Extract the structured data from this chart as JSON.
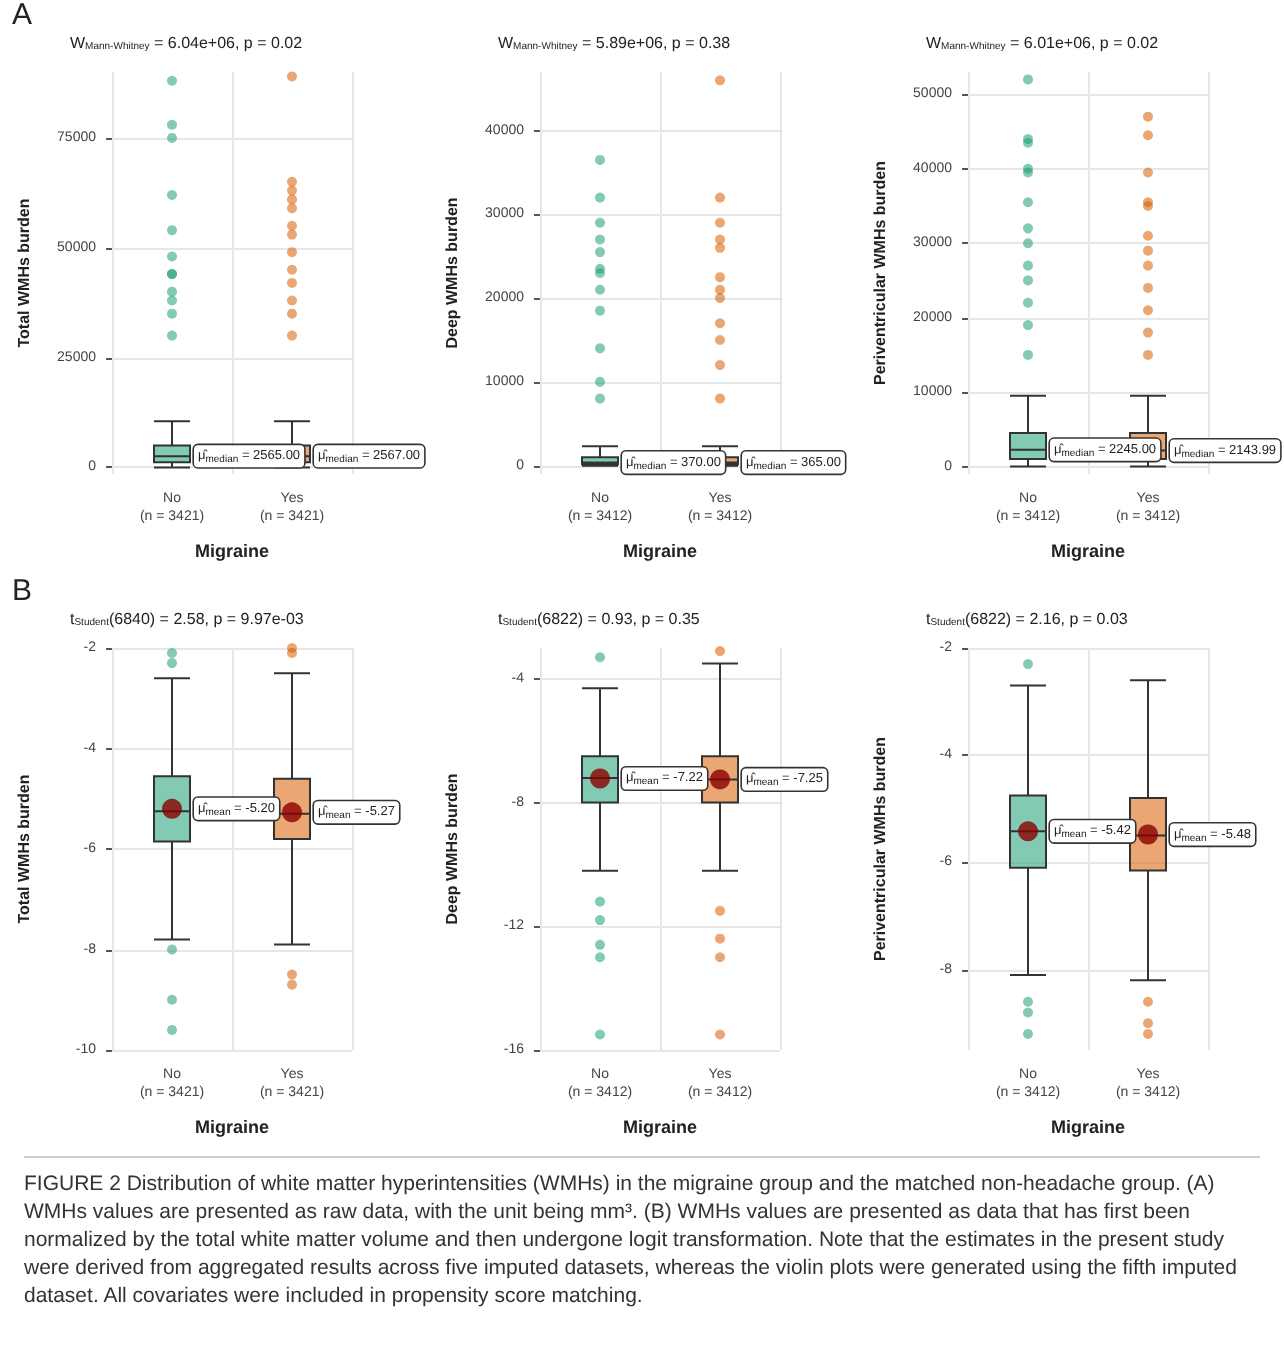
{
  "chart_data": [
    {
      "type": "box",
      "title": "W$_{Mann-Whitney}$ = 6.04e+06, p = 0.02",
      "xlabel": "Migraine",
      "ylabel": "Total WMHs burden",
      "categories": [
        "No\n(n = 3421)",
        "Yes\n(n = 3421)"
      ],
      "colors": [
        "#1b9e77",
        "#d95f02"
      ],
      "ylim": [
        -1500,
        90000
      ],
      "yticks": [
        0,
        25000,
        50000,
        75000
      ],
      "grid": true,
      "boxes": [
        {
          "low": 0,
          "q1": 1200,
          "median": 2565,
          "q3": 5000,
          "high": 10500,
          "outliers": [
            88000,
            78000,
            75000,
            62000,
            54000,
            48000,
            44000,
            44000,
            40000,
            38000,
            35000,
            30000
          ]
        },
        {
          "low": 0,
          "q1": 1200,
          "median": 2567,
          "q3": 5000,
          "high": 10500,
          "outliers": [
            89000,
            65000,
            63000,
            61000,
            59000,
            55000,
            53000,
            49000,
            45000,
            42000,
            38000,
            35000,
            30000
          ]
        }
      ],
      "annotations": [
        "A",
        {
          "text": "μ̂$_{median}$ = 2565.00",
          "x": "No\n(n = 3421)",
          "y": 2565
        },
        {
          "text": "μ̂$_{median}$ = 2567.00",
          "x": "Yes\n(n = 3421)",
          "y": 2567
        }
      ]
    },
    {
      "type": "box",
      "title": "W$_{Mann-Whitney}$ = 5.89e+06, p = 0.38",
      "xlabel": "Migraine",
      "ylabel": "Deep WMHs burden",
      "categories": [
        "No\n(n = 3412)",
        "Yes\n(n = 3412)"
      ],
      "colors": [
        "#1b9e77",
        "#d95f02"
      ],
      "ylim": [
        -1000,
        47000
      ],
      "yticks": [
        0,
        10000,
        20000,
        30000,
        40000
      ],
      "grid": true,
      "boxes": [
        {
          "low": 0,
          "q1": 150,
          "median": 370,
          "q3": 1000,
          "high": 2300,
          "outliers": [
            36500,
            32000,
            29000,
            27000,
            25500,
            23500,
            23000,
            21000,
            18500,
            14000,
            10000,
            8000
          ]
        },
        {
          "low": 0,
          "q1": 150,
          "median": 365,
          "q3": 1000,
          "high": 2300,
          "outliers": [
            46000,
            32000,
            29000,
            27000,
            26000,
            22500,
            21000,
            20000,
            17000,
            15000,
            12000,
            8000
          ]
        }
      ],
      "annotations": [
        {
          "text": "μ̂$_{median}$ = 370.00",
          "x": "No\n(n = 3412)",
          "y": 370
        },
        {
          "text": "μ̂$_{median}$ = 365.00",
          "x": "Yes\n(n = 3412)",
          "y": 365
        }
      ]
    },
    {
      "type": "box",
      "title": "W$_{Mann-Whitney}$ = 6.01e+06, p = 0.02",
      "xlabel": "Migraine",
      "ylabel": "Periventricular WMHs burden",
      "categories": [
        "No\n(n = 3412)",
        "Yes\n(n = 3412)"
      ],
      "colors": [
        "#1b9e77",
        "#d95f02"
      ],
      "ylim": [
        -1000,
        53000
      ],
      "yticks": [
        0,
        10000,
        20000,
        30000,
        40000,
        50000
      ],
      "grid": true,
      "boxes": [
        {
          "low": 0,
          "q1": 1000,
          "median": 2245,
          "q3": 4500,
          "high": 9500,
          "outliers": [
            52000,
            44000,
            43500,
            40000,
            39500,
            35500,
            32000,
            30000,
            27000,
            25000,
            22000,
            19000,
            15000
          ]
        },
        {
          "low": 0,
          "q1": 1000,
          "median": 2143.99,
          "q3": 4500,
          "high": 9500,
          "outliers": [
            47000,
            44500,
            39500,
            35500,
            35000,
            31000,
            29000,
            27000,
            24000,
            21000,
            18000,
            15000
          ]
        }
      ],
      "annotations": [
        {
          "text": "μ̂$_{median}$ = 2245.00",
          "x": "No\n(n = 3412)",
          "y": 2245
        },
        {
          "text": "μ̂$_{median}$ = 2143.99",
          "x": "Yes\n(n = 3412)",
          "y": 2143.99
        }
      ]
    },
    {
      "type": "box",
      "title": "t$_{Student}$(6840) = 2.58, p = 9.97e-03",
      "xlabel": "Migraine",
      "ylabel": "Total WMHs burden",
      "categories": [
        "No\n(n = 3421)",
        "Yes\n(n = 3421)"
      ],
      "colors": [
        "#1b9e77",
        "#d95f02"
      ],
      "ylim": [
        -10,
        -2
      ],
      "yticks": [
        -10,
        -8,
        -6,
        -4,
        -2
      ],
      "grid": true,
      "boxes": [
        {
          "low": -7.8,
          "q1": -5.85,
          "median": -5.25,
          "q3": -4.55,
          "high": -2.6,
          "mean": -5.2,
          "outliers": [
            -2.1,
            -2.3,
            -8,
            -9,
            -9.6
          ]
        },
        {
          "low": -7.9,
          "q1": -5.8,
          "median": -5.3,
          "q3": -4.6,
          "high": -2.5,
          "mean": -5.27,
          "outliers": [
            -2,
            -2.1,
            -8.5,
            -8.7
          ]
        }
      ],
      "annotations": [
        "B",
        {
          "text": "μ̂$_{mean}$ = -5.20",
          "x": "No\n(n = 3421)",
          "y": -5.2
        },
        {
          "text": "μ̂$_{mean}$ = -5.27",
          "x": "Yes\n(n = 3421)",
          "y": -5.27
        }
      ]
    },
    {
      "type": "box",
      "title": "t$_{Student}$(6822) = 0.93, p = 0.35",
      "xlabel": "Migraine",
      "ylabel": "Deep WMHs burden",
      "categories": [
        "No\n(n = 3412)",
        "Yes\n(n = 3412)"
      ],
      "colors": [
        "#1b9e77",
        "#d95f02"
      ],
      "ylim": [
        -16,
        -3
      ],
      "yticks": [
        -16,
        -12,
        -8,
        -4
      ],
      "grid": true,
      "boxes": [
        {
          "low": -10.2,
          "q1": -8,
          "median": -7.2,
          "q3": -6.5,
          "high": -4.3,
          "mean": -7.22,
          "outliers": [
            -3.3,
            -11.2,
            -11.8,
            -12.6,
            -13,
            -15.5
          ]
        },
        {
          "low": -10.2,
          "q1": -8,
          "median": -7.25,
          "q3": -6.5,
          "high": -3.5,
          "mean": -7.25,
          "outliers": [
            -3.1,
            -11.5,
            -12.4,
            -13,
            -15.5
          ]
        }
      ],
      "annotations": [
        {
          "text": "μ̂$_{mean}$ = -7.22",
          "x": "No\n(n = 3412)",
          "y": -7.22
        },
        {
          "text": "μ̂$_{mean}$ = -7.25",
          "x": "Yes\n(n = 3412)",
          "y": -7.25
        }
      ]
    },
    {
      "type": "box",
      "title": "t$_{Student}$(6822) = 2.16, p = 0.03",
      "xlabel": "Migraine",
      "ylabel": "Periventricular WMHs burden",
      "categories": [
        "No\n(n = 3412)",
        "Yes\n(n = 3412)"
      ],
      "colors": [
        "#1b9e77",
        "#d95f02"
      ],
      "ylim": [
        -9.5,
        -2
      ],
      "yticks": [
        -8,
        -6,
        -4,
        -2
      ],
      "grid": true,
      "boxes": [
        {
          "low": -8.1,
          "q1": -6.1,
          "median": -5.42,
          "q3": -4.75,
          "high": -2.7,
          "mean": -5.42,
          "outliers": [
            -2.3,
            -8.6,
            -8.8,
            -9.2
          ]
        },
        {
          "low": -8.2,
          "q1": -6.15,
          "median": -5.5,
          "q3": -4.8,
          "high": -2.6,
          "mean": -5.48,
          "outliers": [
            -8.6,
            -9,
            -9.2
          ]
        }
      ],
      "annotations": [
        {
          "text": "μ̂$_{mean}$ = -5.42",
          "x": "No\n(n = 3412)",
          "y": -5.42
        },
        {
          "text": "μ̂$_{mean}$ = -5.48",
          "x": "Yes\n(n = 3412)",
          "y": -5.48
        }
      ]
    },
    {
      "type": "other",
      "annotations": [
        "FIGURE 2  Distribution of white matter hyperintensities (WMHs) in the migraine group and the matched non-headache group. (A) WMHs values are presented as raw data, with the unit being mm³. (B) WMHs values are presented as data that has first been normalized by the total white matter volume and then undergone logit transformation. Note that the estimates in the present study were derived from aggregated results across five imputed datasets, whereas the violin plots were generated using the fifth imputed dataset. All covariates were included in propensity score matching."
      ]
    }
  ]
}
